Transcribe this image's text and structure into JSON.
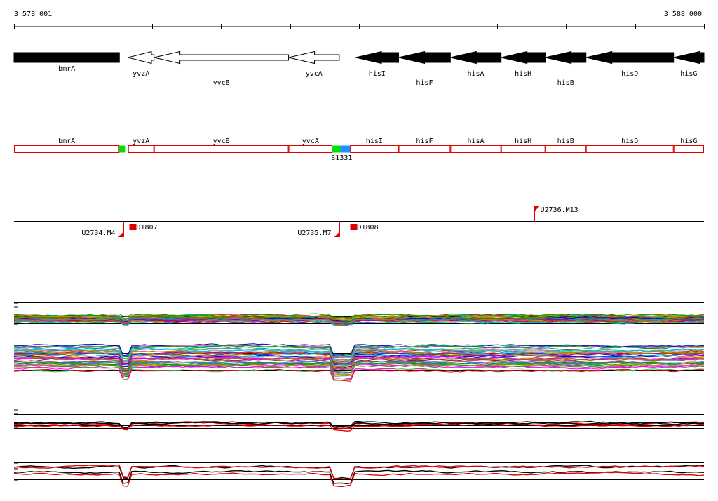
{
  "ruler": {
    "start_label": "3 578 001",
    "end_label": "3 588 000",
    "start": 3578001,
    "end": 3588000,
    "major_tick": 1000
  },
  "genes": [
    {
      "name": "bmrA",
      "strand": "+",
      "start": 3578001,
      "end": 3579528,
      "filled": true,
      "label_row": 0
    },
    {
      "name": "yvzA",
      "strand": "-",
      "start": 3579655,
      "end": 3580030,
      "filled": false,
      "label_row": 1
    },
    {
      "name": "yvcB",
      "strand": "-",
      "start": 3580030,
      "end": 3581980,
      "filled": false,
      "label_row": 2
    },
    {
      "name": "yvcA",
      "strand": "-",
      "start": 3581980,
      "end": 3582715,
      "filled": false,
      "label_row": 1
    },
    {
      "name": "hisI",
      "strand": "-",
      "start": 3582950,
      "end": 3583575,
      "filled": true,
      "label_row": 1
    },
    {
      "name": "hisF",
      "strand": "-",
      "start": 3583575,
      "end": 3584325,
      "filled": true,
      "label_row": 2
    },
    {
      "name": "hisA",
      "strand": "-",
      "start": 3584325,
      "end": 3585060,
      "filled": true,
      "label_row": 1
    },
    {
      "name": "hisH",
      "strand": "-",
      "start": 3585060,
      "end": 3585700,
      "filled": true,
      "label_row": 1
    },
    {
      "name": "hisB",
      "strand": "-",
      "start": 3585700,
      "end": 3586290,
      "filled": true,
      "label_row": 2
    },
    {
      "name": "hisD",
      "strand": "-",
      "start": 3586290,
      "end": 3587560,
      "filled": true,
      "label_row": 1
    },
    {
      "name": "hisG",
      "strand": "-",
      "start": 3587560,
      "end": 3588000,
      "filled": true,
      "label_row": 1
    }
  ],
  "segments": [
    {
      "name": "bmrA",
      "start": 3578001,
      "end": 3579528
    },
    {
      "name": "yvzA",
      "start": 3579655,
      "end": 3580030
    },
    {
      "name": "yvcB",
      "start": 3580030,
      "end": 3581980
    },
    {
      "name": "yvcA",
      "start": 3581980,
      "end": 3582615
    },
    {
      "name": "hisI",
      "start": 3582870,
      "end": 3583575
    },
    {
      "name": "hisF",
      "start": 3583575,
      "end": 3584325
    },
    {
      "name": "hisA",
      "start": 3584325,
      "end": 3585060
    },
    {
      "name": "hisH",
      "start": 3585060,
      "end": 3585700
    },
    {
      "name": "hisB",
      "start": 3585700,
      "end": 3586290
    },
    {
      "name": "hisD",
      "start": 3586290,
      "end": 3587560
    },
    {
      "name": "hisG",
      "start": 3587560,
      "end": 3588000
    }
  ],
  "segment_markers": [
    {
      "start": 3579528,
      "end": 3579610,
      "color": "#00e000"
    },
    {
      "start": 3582615,
      "end": 3582730,
      "color": "#00e000"
    },
    {
      "start": 3582730,
      "end": 3582870,
      "color": "#1e90ff"
    }
  ],
  "segment_caption": {
    "text": "S1331",
    "pos": 3582750
  },
  "features": [
    {
      "type": "flag-down",
      "label": "U2734.M4",
      "pos": 3579582
    },
    {
      "type": "box",
      "label": "D1807",
      "pos": 3579680
    },
    {
      "type": "flag-down",
      "label": "U2735.M7",
      "pos": 3582715
    },
    {
      "type": "box",
      "label": "D1808",
      "pos": 3582880
    },
    {
      "type": "flag-up",
      "label": "U2736.M13",
      "pos": 3585540
    }
  ],
  "colors": {
    "gene_fill": "#000000",
    "segment_outline": "#e00000",
    "divider": "#e00000",
    "profile_palette": [
      "#e00000",
      "#00a000",
      "#0000e0",
      "#a000a0",
      "#00a0a0",
      "#e07000",
      "#808000",
      "#ff00ff",
      "#00c0ff",
      "#606060",
      "#c0a000",
      "#40c040",
      "#ff6080",
      "#6060ff",
      "#a05000"
    ]
  },
  "profile_panels": [
    {
      "id": "expression-upper",
      "series": 36
    },
    {
      "id": "expression-lower",
      "series": 40
    },
    {
      "id": "summary-upper",
      "series": 4
    },
    {
      "id": "summary-lower",
      "series": 4
    }
  ]
}
